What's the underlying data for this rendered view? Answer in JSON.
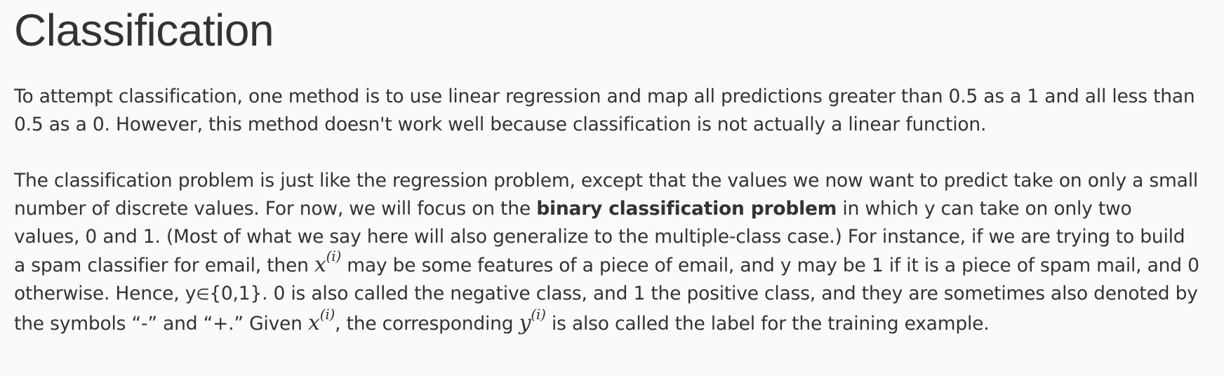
{
  "title": "Classification",
  "paragraphs": {
    "p1": "To attempt classification, one method is to use linear regression and map all predictions greater than 0.5 as a 1 and all less than 0.5 as a 0. However, this method doesn't work well because classification is not actually a linear function.",
    "p2_a": "The classification problem is just like the regression problem, except that the values we now want to predict take on only a small number of discrete values. For now, we will focus on the ",
    "p2_bold": "binary classification problem",
    "p2_b": " in which y can take on only two values, 0 and 1. (Most of what we say here will also generalize to the multiple-class case.) For instance, if we are trying to build a spam classifier for email, then ",
    "p2_c": " may be some features of a piece of email, and y may be 1 if it is a piece of spam mail, and 0 otherwise. Hence, y",
    "p2_elem": "∈",
    "p2_d": "{0,1}. 0 is also called the negative class, and 1 the positive class, and they are sometimes also denoted by the symbols “-” and “+.” Given ",
    "p2_e": ", the corresponding ",
    "p2_f": " is also called the label for the training example."
  },
  "math": {
    "x_base": "x",
    "y_base": "y",
    "index": "(i)"
  }
}
